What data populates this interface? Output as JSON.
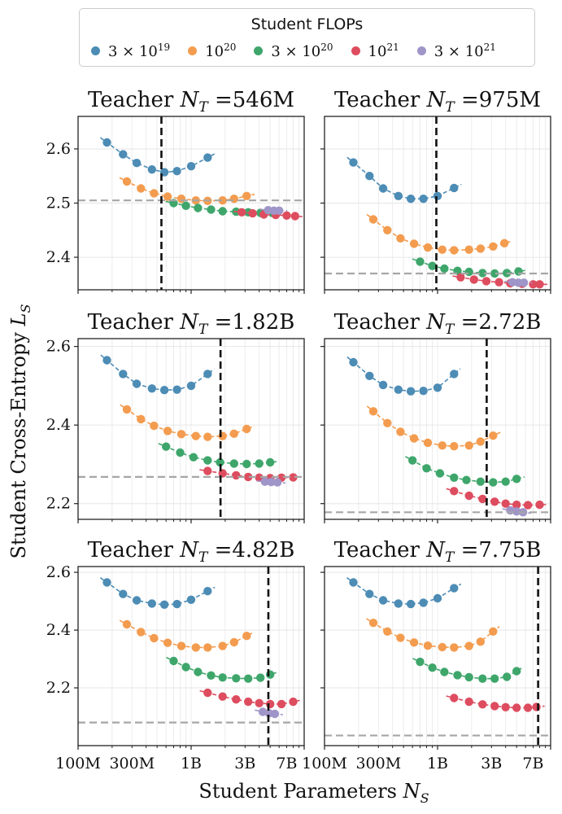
{
  "legend": {
    "title": "Student FLOPs",
    "entries": [
      {
        "name": "3 × 10^19",
        "base": "3 × 10",
        "exp": "19",
        "color": "#4c8cb5"
      },
      {
        "name": "10^20",
        "base": "10",
        "exp": "20",
        "color": "#f39c4f"
      },
      {
        "name": "3 × 10^20",
        "base": "3 × 10",
        "exp": "20",
        "color": "#3fa66b"
      },
      {
        "name": "10^21",
        "base": "10",
        "exp": "21",
        "color": "#dd4d5f"
      },
      {
        "name": "3 × 10^21",
        "base": "3 × 10",
        "exp": "21",
        "color": "#9f95c8"
      }
    ]
  },
  "ylabel": "Student Cross-Entropy L_S",
  "xlabel": "Student Parameters N_S",
  "colors": {
    "vline": "#111111",
    "hline": "#a6a6a6"
  },
  "chart_data": [
    {
      "type": "scatter",
      "title": "Teacher N_T =546M",
      "title_value": "=546M",
      "xscale": "log",
      "xlim": [
        100000000.0,
        10000000000.0
      ],
      "ylim": [
        2.34,
        2.66
      ],
      "yticks": [
        2.4,
        2.5,
        2.6
      ],
      "yticklabels": [
        "2.4",
        "2.5",
        "2.6"
      ],
      "xticks": [
        100000000.0,
        300000000.0,
        1000000000.0,
        3000000000.0,
        7000000000.0
      ],
      "xticklabels": [
        "100M",
        "300M",
        "1B",
        "3B",
        "7B"
      ],
      "teacher_params": 546000000.0,
      "teacher_loss": 2.505,
      "series": [
        {
          "name": "3 × 10^19",
          "x": [
            180000000.0,
            250000000.0,
            330000000.0,
            450000000.0,
            580000000.0,
            750000000.0,
            1000000000.0,
            1400000000.0
          ],
          "y": [
            2.612,
            2.59,
            2.574,
            2.562,
            2.557,
            2.559,
            2.568,
            2.584
          ]
        },
        {
          "name": "10^20",
          "x": [
            270000000.0,
            360000000.0,
            470000000.0,
            620000000.0,
            820000000.0,
            1100000000.0,
            1400000000.0,
            1900000000.0,
            2400000000.0,
            3100000000.0
          ],
          "y": [
            2.54,
            2.527,
            2.518,
            2.512,
            2.508,
            2.505,
            2.504,
            2.505,
            2.508,
            2.513
          ]
        },
        {
          "name": "3 × 10^20",
          "x": [
            700000000.0,
            900000000.0,
            1150000000.0,
            1500000000.0,
            1900000000.0,
            2500000000.0,
            3200000000.0,
            4100000000.0,
            5200000000.0
          ],
          "y": [
            2.5,
            2.495,
            2.491,
            2.488,
            2.485,
            2.484,
            2.483,
            2.482,
            2.482
          ]
        },
        {
          "name": "10^21",
          "x": [
            2800000000.0,
            3500000000.0,
            4400000000.0,
            5600000000.0,
            7000000000.0,
            8300000000.0
          ],
          "y": [
            2.483,
            2.481,
            2.479,
            2.478,
            2.477,
            2.476
          ]
        },
        {
          "name": "3 × 10^21",
          "x": [
            4800000000.0,
            5400000000.0,
            6000000000.0
          ],
          "y": [
            2.487,
            2.486,
            2.486
          ]
        }
      ]
    },
    {
      "type": "scatter",
      "title": "Teacher N_T =975M",
      "title_value": "=975M",
      "xscale": "log",
      "xlim": [
        100000000.0,
        10000000000.0
      ],
      "ylim": [
        2.34,
        2.66
      ],
      "yticks": [
        2.4,
        2.5,
        2.6
      ],
      "yticklabels": [
        "2.4",
        "2.5",
        "2.6"
      ],
      "xticks": [
        100000000.0,
        300000000.0,
        1000000000.0,
        3000000000.0,
        7000000000.0
      ],
      "xticklabels": [
        "100M",
        "300M",
        "1B",
        "3B",
        "7B"
      ],
      "teacher_params": 975000000.0,
      "teacher_loss": 2.37,
      "series": [
        {
          "name": "3 × 10^19",
          "x": [
            180000000.0,
            250000000.0,
            330000000.0,
            450000000.0,
            580000000.0,
            750000000.0,
            1000000000.0,
            1400000000.0
          ],
          "y": [
            2.575,
            2.55,
            2.527,
            2.513,
            2.508,
            2.508,
            2.513,
            2.528
          ]
        },
        {
          "name": "10^20",
          "x": [
            270000000.0,
            360000000.0,
            470000000.0,
            620000000.0,
            820000000.0,
            1100000000.0,
            1400000000.0,
            1900000000.0,
            2400000000.0,
            3100000000.0,
            3900000000.0
          ],
          "y": [
            2.47,
            2.45,
            2.435,
            2.425,
            2.418,
            2.414,
            2.413,
            2.414,
            2.416,
            2.42,
            2.426
          ]
        },
        {
          "name": "3 × 10^20",
          "x": [
            700000000.0,
            900000000.0,
            1150000000.0,
            1500000000.0,
            1900000000.0,
            2500000000.0,
            3200000000.0,
            4100000000.0,
            5200000000.0
          ],
          "y": [
            2.392,
            2.384,
            2.379,
            2.375,
            2.373,
            2.371,
            2.37,
            2.371,
            2.374
          ]
        },
        {
          "name": "10^21",
          "x": [
            1600000000.0,
            2100000000.0,
            2700000000.0,
            3500000000.0,
            4400000000.0,
            5600000000.0,
            7000000000.0,
            8000000000.0
          ],
          "y": [
            2.363,
            2.359,
            2.356,
            2.354,
            2.352,
            2.351,
            2.35,
            2.35
          ]
        },
        {
          "name": "3 × 10^21",
          "x": [
            4600000000.0,
            5200000000.0,
            5800000000.0
          ],
          "y": [
            2.354,
            2.353,
            2.353
          ]
        }
      ]
    },
    {
      "type": "scatter",
      "title": "Teacher N_T =1.82B",
      "title_value": "=1.82B",
      "xscale": "log",
      "xlim": [
        100000000.0,
        10000000000.0
      ],
      "ylim": [
        2.16,
        2.62
      ],
      "yticks": [
        2.2,
        2.4,
        2.6
      ],
      "yticklabels": [
        "2.2",
        "2.4",
        "2.6"
      ],
      "xticks": [
        100000000.0,
        300000000.0,
        1000000000.0,
        3000000000.0,
        7000000000.0
      ],
      "xticklabels": [
        "100M",
        "300M",
        "1B",
        "3B",
        "7B"
      ],
      "teacher_params": 1820000000.0,
      "teacher_loss": 2.268,
      "series": [
        {
          "name": "3 × 10^19",
          "x": [
            180000000.0,
            250000000.0,
            330000000.0,
            450000000.0,
            580000000.0,
            750000000.0,
            1000000000.0,
            1400000000.0
          ],
          "y": [
            2.565,
            2.53,
            2.505,
            2.493,
            2.489,
            2.49,
            2.5,
            2.53
          ]
        },
        {
          "name": "10^20",
          "x": [
            270000000.0,
            360000000.0,
            470000000.0,
            620000000.0,
            820000000.0,
            1100000000.0,
            1400000000.0,
            1900000000.0,
            2400000000.0,
            3100000000.0
          ],
          "y": [
            2.44,
            2.415,
            2.398,
            2.385,
            2.377,
            2.372,
            2.37,
            2.372,
            2.378,
            2.39
          ]
        },
        {
          "name": "3 × 10^20",
          "x": [
            600000000.0,
            800000000.0,
            1050000000.0,
            1400000000.0,
            1800000000.0,
            2400000000.0,
            3100000000.0,
            4000000000.0,
            5000000000.0
          ],
          "y": [
            2.345,
            2.33,
            2.318,
            2.31,
            2.305,
            2.302,
            2.301,
            2.302,
            2.305
          ]
        },
        {
          "name": "10^21",
          "x": [
            1400000000.0,
            1900000000.0,
            2500000000.0,
            3200000000.0,
            4000000000.0,
            5000000000.0,
            6300000000.0,
            8000000000.0
          ],
          "y": [
            2.283,
            2.277,
            2.272,
            2.268,
            2.266,
            2.265,
            2.266,
            2.267
          ]
        },
        {
          "name": "3 × 10^21",
          "x": [
            4500000000.0,
            5100000000.0,
            5800000000.0
          ],
          "y": [
            2.256,
            2.255,
            2.254
          ]
        }
      ]
    },
    {
      "type": "scatter",
      "title": "Teacher N_T =2.72B",
      "title_value": "=2.72B",
      "xscale": "log",
      "xlim": [
        100000000.0,
        10000000000.0
      ],
      "ylim": [
        2.16,
        2.62
      ],
      "yticks": [
        2.2,
        2.4,
        2.6
      ],
      "yticklabels": [
        "2.2",
        "2.4",
        "2.6"
      ],
      "xticks": [
        100000000.0,
        300000000.0,
        1000000000.0,
        3000000000.0,
        7000000000.0
      ],
      "xticklabels": [
        "100M",
        "300M",
        "1B",
        "3B",
        "7B"
      ],
      "teacher_params": 2720000000.0,
      "teacher_loss": 2.178,
      "series": [
        {
          "name": "3 × 10^19",
          "x": [
            180000000.0,
            250000000.0,
            330000000.0,
            450000000.0,
            580000000.0,
            750000000.0,
            1000000000.0,
            1400000000.0
          ],
          "y": [
            2.56,
            2.525,
            2.502,
            2.49,
            2.486,
            2.487,
            2.495,
            2.53
          ]
        },
        {
          "name": "10^20",
          "x": [
            270000000.0,
            360000000.0,
            470000000.0,
            620000000.0,
            820000000.0,
            1100000000.0,
            1400000000.0,
            1900000000.0,
            2400000000.0,
            3100000000.0
          ],
          "y": [
            2.435,
            2.405,
            2.383,
            2.366,
            2.355,
            2.348,
            2.346,
            2.348,
            2.358,
            2.373
          ]
        },
        {
          "name": "3 × 10^20",
          "x": [
            600000000.0,
            800000000.0,
            1050000000.0,
            1400000000.0,
            1800000000.0,
            2400000000.0,
            3100000000.0,
            4000000000.0,
            5000000000.0
          ],
          "y": [
            2.31,
            2.29,
            2.277,
            2.266,
            2.26,
            2.256,
            2.254,
            2.256,
            2.263
          ]
        },
        {
          "name": "10^21",
          "x": [
            1400000000.0,
            1900000000.0,
            2500000000.0,
            3200000000.0,
            4000000000.0,
            5000000000.0,
            6300000000.0,
            8000000000.0
          ],
          "y": [
            2.232,
            2.22,
            2.212,
            2.205,
            2.2,
            2.197,
            2.196,
            2.197
          ]
        },
        {
          "name": "3 × 10^21",
          "x": [
            4400000000.0,
            5000000000.0,
            5700000000.0
          ],
          "y": [
            2.183,
            2.18,
            2.178
          ]
        }
      ]
    },
    {
      "type": "scatter",
      "title": "Teacher N_T =4.82B",
      "title_value": "=4.82B",
      "xscale": "log",
      "xlim": [
        100000000.0,
        10000000000.0
      ],
      "ylim": [
        2.0,
        2.62
      ],
      "yticks": [
        2.2,
        2.4,
        2.6
      ],
      "yticklabels": [
        "2.2",
        "2.4",
        "2.6"
      ],
      "xticks": [
        100000000.0,
        300000000.0,
        1000000000.0,
        3000000000.0,
        7000000000.0
      ],
      "xticklabels": [
        "100M",
        "300M",
        "1B",
        "3B",
        "7B"
      ],
      "teacher_params": 4820000000.0,
      "teacher_loss": 2.08,
      "series": [
        {
          "name": "3 × 10^19",
          "x": [
            180000000.0,
            250000000.0,
            330000000.0,
            450000000.0,
            580000000.0,
            750000000.0,
            1000000000.0,
            1400000000.0
          ],
          "y": [
            2.565,
            2.525,
            2.503,
            2.492,
            2.488,
            2.49,
            2.505,
            2.535
          ]
        },
        {
          "name": "10^20",
          "x": [
            270000000.0,
            360000000.0,
            470000000.0,
            620000000.0,
            820000000.0,
            1100000000.0,
            1400000000.0,
            1900000000.0,
            2400000000.0,
            3100000000.0
          ],
          "y": [
            2.42,
            2.393,
            2.372,
            2.356,
            2.345,
            2.34,
            2.34,
            2.345,
            2.358,
            2.38
          ]
        },
        {
          "name": "3 × 10^20",
          "x": [
            700000000.0,
            900000000.0,
            1150000000.0,
            1500000000.0,
            1900000000.0,
            2500000000.0,
            3200000000.0,
            4100000000.0,
            5000000000.0
          ],
          "y": [
            2.293,
            2.272,
            2.255,
            2.243,
            2.236,
            2.233,
            2.232,
            2.235,
            2.246
          ]
        },
        {
          "name": "10^21",
          "x": [
            1400000000.0,
            1900000000.0,
            2500000000.0,
            3200000000.0,
            4000000000.0,
            5000000000.0,
            6300000000.0,
            8000000000.0
          ],
          "y": [
            2.183,
            2.17,
            2.16,
            2.152,
            2.147,
            2.144,
            2.144,
            2.152
          ]
        },
        {
          "name": "3 × 10^21",
          "x": [
            4300000000.0,
            4900000000.0,
            5500000000.0
          ],
          "y": [
            2.117,
            2.112,
            2.11
          ]
        }
      ]
    },
    {
      "type": "scatter",
      "title": "Teacher N_T =7.75B",
      "title_value": "=7.75B",
      "xscale": "log",
      "xlim": [
        100000000.0,
        10000000000.0
      ],
      "ylim": [
        2.0,
        2.62
      ],
      "yticks": [
        2.2,
        2.4,
        2.6
      ],
      "yticklabels": [
        "2.2",
        "2.4",
        "2.6"
      ],
      "xticks": [
        100000000.0,
        300000000.0,
        1000000000.0,
        3000000000.0,
        7000000000.0
      ],
      "xticklabels": [
        "100M",
        "300M",
        "1B",
        "3B",
        "7B"
      ],
      "teacher_params": 7750000000.0,
      "teacher_loss": 2.035,
      "series": [
        {
          "name": "3 × 10^19",
          "x": [
            180000000.0,
            250000000.0,
            330000000.0,
            450000000.0,
            580000000.0,
            750000000.0,
            1000000000.0,
            1400000000.0
          ],
          "y": [
            2.565,
            2.525,
            2.503,
            2.492,
            2.49,
            2.495,
            2.51,
            2.545
          ]
        },
        {
          "name": "10^20",
          "x": [
            270000000.0,
            360000000.0,
            470000000.0,
            620000000.0,
            820000000.0,
            1100000000.0,
            1400000000.0,
            1900000000.0,
            2400000000.0,
            3100000000.0
          ],
          "y": [
            2.425,
            2.395,
            2.373,
            2.357,
            2.346,
            2.341,
            2.34,
            2.345,
            2.36,
            2.395
          ]
        },
        {
          "name": "3 × 10^20",
          "x": [
            700000000.0,
            900000000.0,
            1150000000.0,
            1500000000.0,
            1900000000.0,
            2500000000.0,
            3200000000.0,
            4100000000.0,
            5000000000.0
          ],
          "y": [
            2.29,
            2.27,
            2.255,
            2.244,
            2.237,
            2.232,
            2.232,
            2.238,
            2.258
          ]
        },
        {
          "name": "10^21",
          "x": [
            1400000000.0,
            1900000000.0,
            2500000000.0,
            3200000000.0,
            4000000000.0,
            5000000000.0,
            6300000000.0,
            7500000000.0
          ],
          "y": [
            2.165,
            2.152,
            2.143,
            2.137,
            2.133,
            2.131,
            2.131,
            2.134
          ]
        },
        {
          "name": "3 × 10^21",
          "x": [],
          "y": []
        }
      ]
    }
  ]
}
